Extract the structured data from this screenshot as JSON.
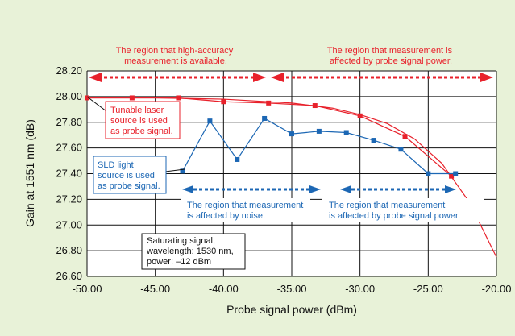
{
  "colors": {
    "background": "#e8f2d8",
    "plot_background": "#ffffff",
    "grid": "#111111",
    "laser": "#e8212b",
    "sld": "#1c67b4",
    "curve": "#e8212b"
  },
  "chart_data": {
    "type": "line",
    "xlabel": "Probe signal power (dBm)",
    "ylabel": "Gain at 1551 nm (dB)",
    "xlim": [
      -50,
      -20
    ],
    "ylim": [
      26.6,
      28.2
    ],
    "xticks": [
      -50,
      -45,
      -40,
      -35,
      -30,
      -25,
      -20
    ],
    "xtick_labels": [
      "‑50.00",
      "‑45.00",
      "‑40.00",
      "‑35.00",
      "‑30.00",
      "‑25.00",
      "‑20.00"
    ],
    "yticks": [
      26.6,
      26.8,
      27.0,
      27.2,
      27.4,
      27.6,
      27.8,
      28.0,
      28.2
    ],
    "ytick_labels": [
      "26.60",
      "26.80",
      "27.00",
      "27.20",
      "27.40",
      "27.60",
      "27.80",
      "28.00",
      "28.20"
    ],
    "grid": true,
    "series": [
      {
        "key": "laser",
        "x": [
          -50,
          -46.7,
          -43.3,
          -40.0,
          -36.7,
          -33.3,
          -30.0,
          -26.7,
          -23.3
        ],
        "y": [
          27.99,
          27.99,
          27.99,
          27.96,
          27.95,
          27.93,
          27.85,
          27.69,
          27.38
        ]
      },
      {
        "key": "sld",
        "x": [
          -43.0,
          -41.0,
          -39.0,
          -37.0,
          -35.0,
          -33.0,
          -31.0,
          -29.0,
          -27.0,
          -25.0,
          -23.0
        ],
        "y": [
          27.42,
          27.81,
          27.51,
          27.83,
          27.71,
          27.73,
          27.72,
          27.66,
          27.59,
          27.4,
          27.4
        ]
      }
    ],
    "curve": {
      "x": [
        -50,
        -45,
        -40,
        -35,
        -32,
        -30,
        -28,
        -26,
        -24,
        -22,
        -20
      ],
      "y": [
        27.99,
        27.99,
        27.98,
        27.95,
        27.91,
        27.86,
        27.79,
        27.67,
        27.48,
        27.18,
        26.75
      ]
    },
    "annotations": {
      "red_top_left": [
        "The region that high-accuracy",
        "measurement is available."
      ],
      "red_top_right": [
        "The region that measurement is",
        "affected by probe signal power."
      ],
      "laser_label": [
        "Tunable laser",
        "source is used",
        "as probe signal."
      ],
      "sld_label": [
        "SLD light",
        "source is used",
        "as probe signal."
      ],
      "blue_left": [
        "The region that measurement",
        "is affected by noise."
      ],
      "blue_right": [
        "The region that measurement",
        "is affected by probe signal power."
      ],
      "saturating": [
        "Saturating signal,",
        "wavelength: 1530 nm,",
        "power: –12 dBm"
      ]
    }
  }
}
